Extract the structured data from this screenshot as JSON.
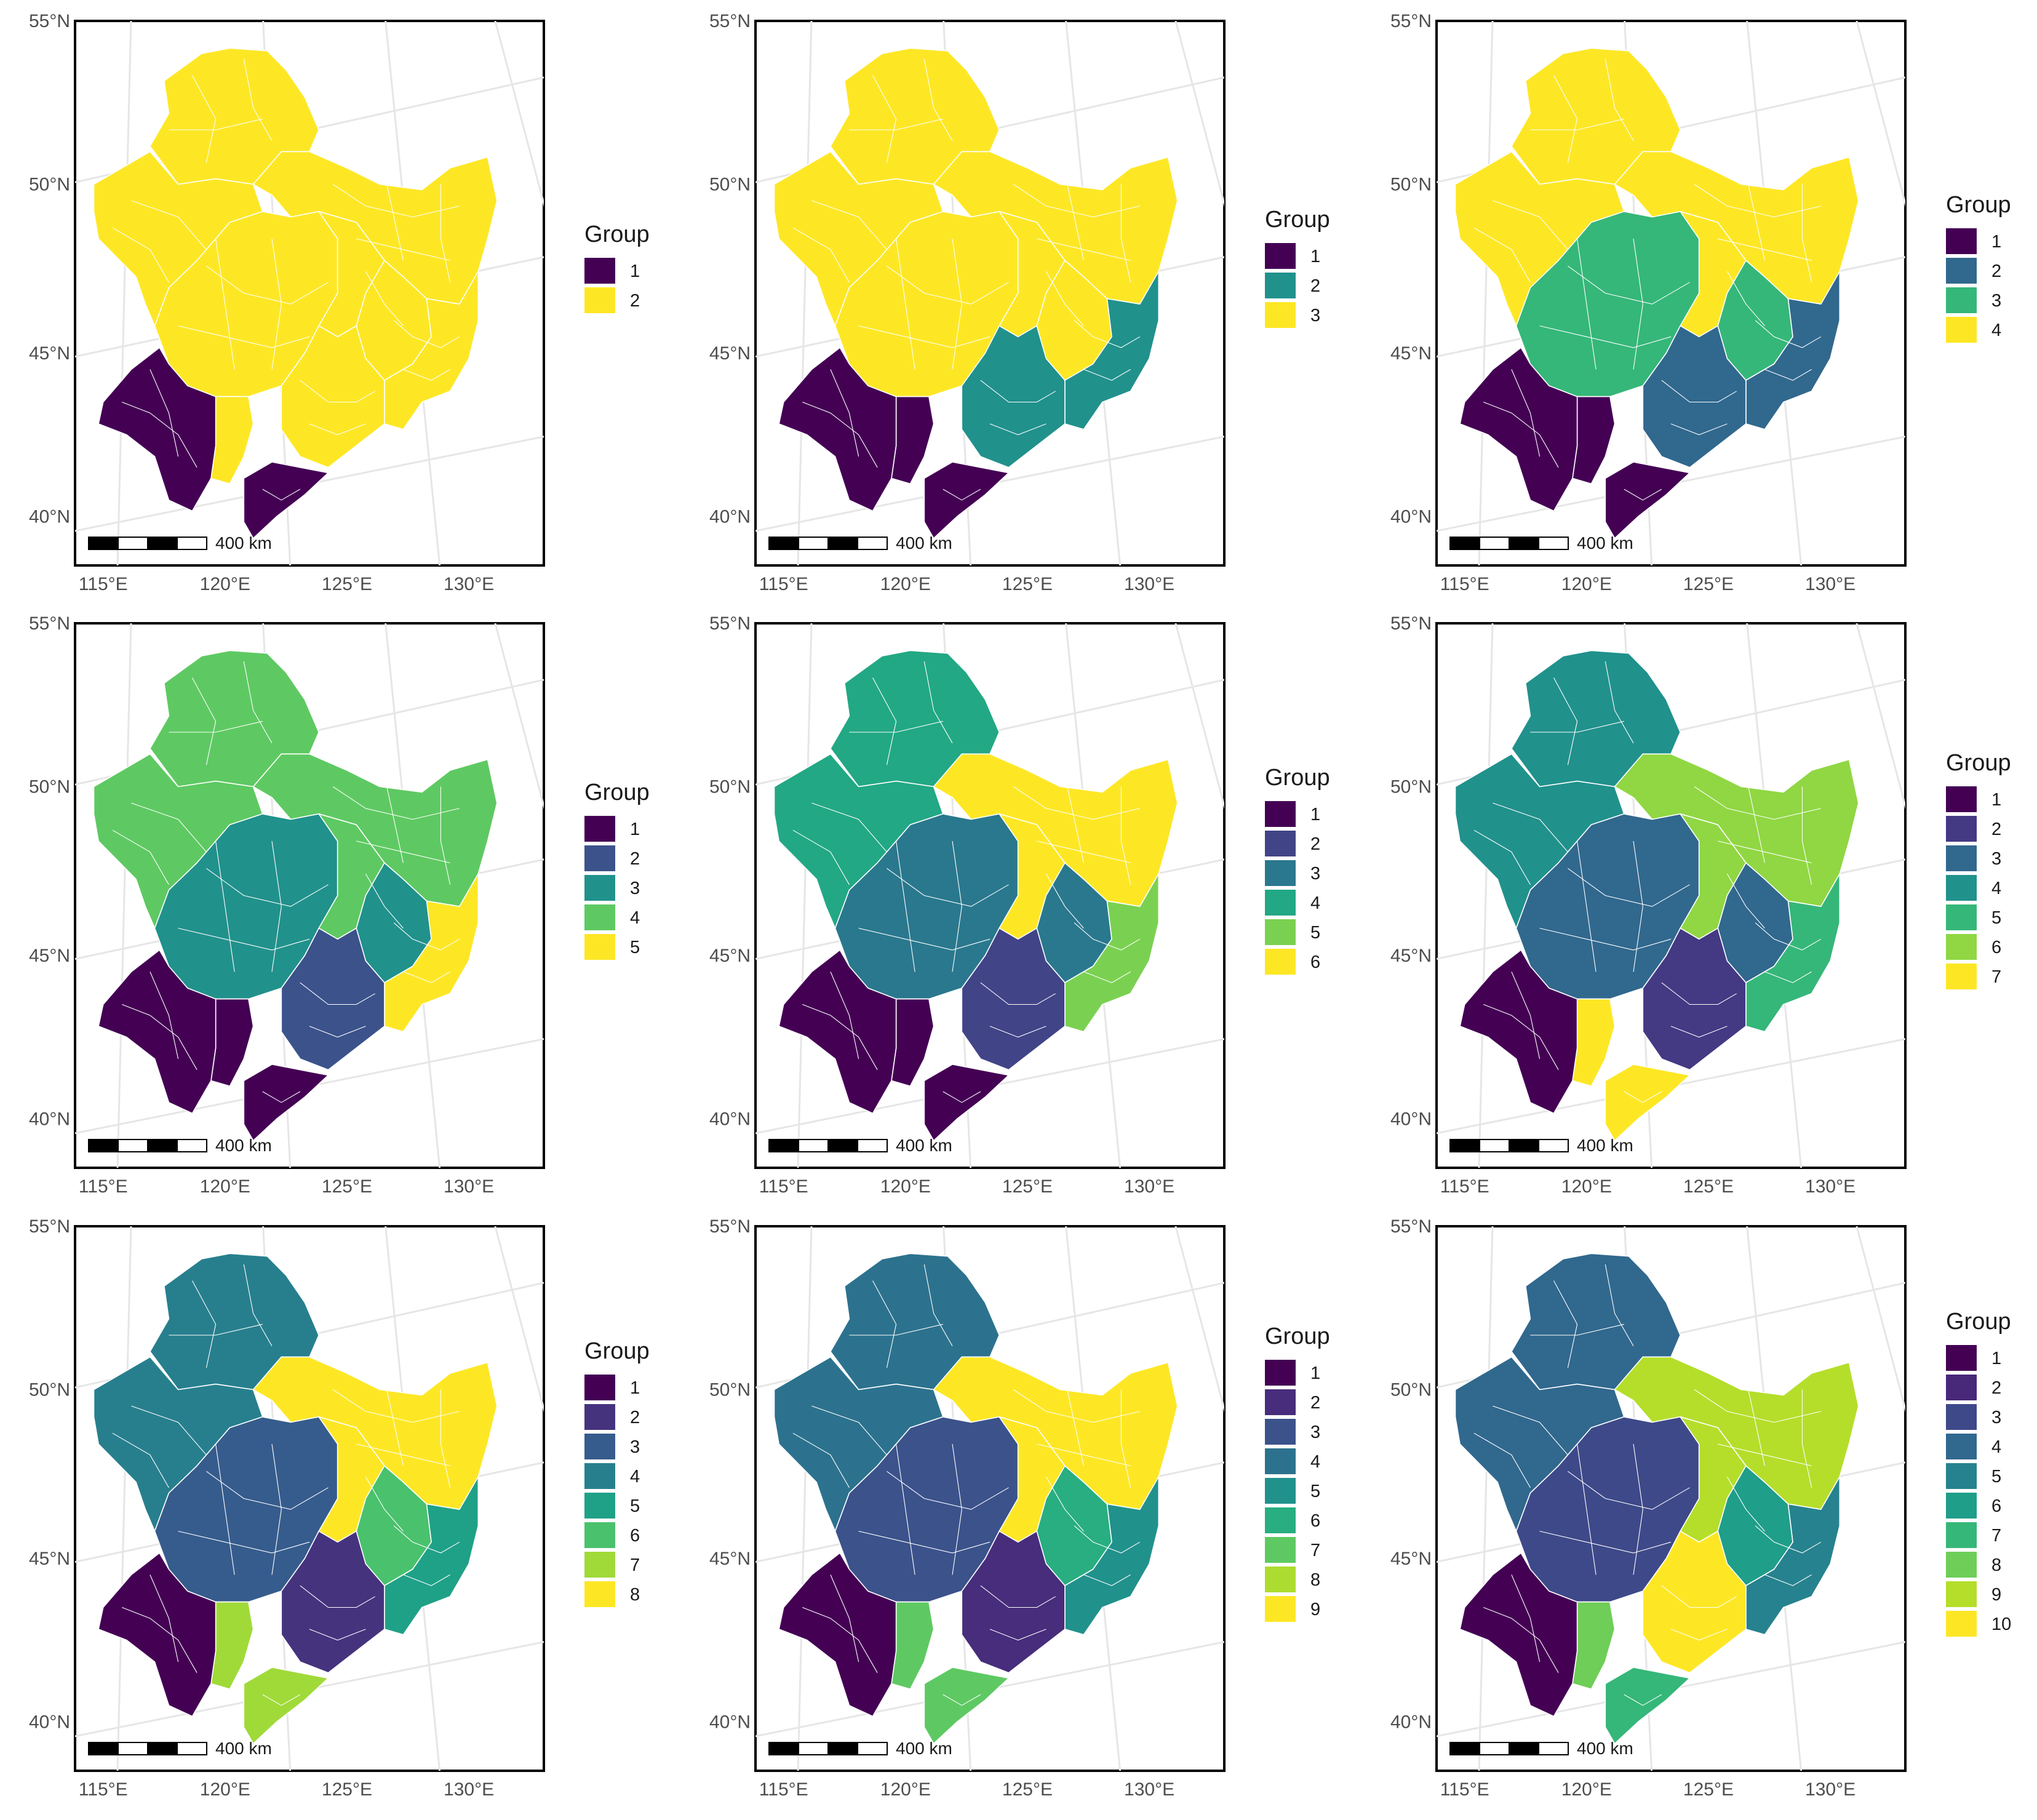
{
  "maps": {
    "lat_labels": [
      "55°N",
      "50°N",
      "45°N",
      "40°N"
    ],
    "lon_labels": [
      "115°E",
      "120°E",
      "125°E",
      "130°E"
    ],
    "scalebar_label": "400 km",
    "legend_title": "Group",
    "palettes": {
      "2": [
        "#440154",
        "#fde725"
      ],
      "3": [
        "#440154",
        "#21918c",
        "#fde725"
      ],
      "4": [
        "#440154",
        "#31688e",
        "#35b779",
        "#fde725"
      ],
      "5": [
        "#440154",
        "#3b528b",
        "#21918c",
        "#5ec962",
        "#fde725"
      ],
      "6": [
        "#440154",
        "#414487",
        "#2a788e",
        "#22a884",
        "#7ad151",
        "#fde725"
      ],
      "7": [
        "#440154",
        "#443983",
        "#31688e",
        "#21918c",
        "#35b779",
        "#90d743",
        "#fde725"
      ],
      "8": [
        "#440154",
        "#46337e",
        "#365c8d",
        "#277f8e",
        "#1fa187",
        "#4ac16d",
        "#a0da39",
        "#fde725"
      ],
      "9": [
        "#440154",
        "#472d7b",
        "#3b528b",
        "#2c728e",
        "#21918c",
        "#28ae80",
        "#5ec962",
        "#addc30",
        "#fde725"
      ],
      "10": [
        "#440154",
        "#482878",
        "#3e4989",
        "#31688e",
        "#26828e",
        "#1f9e89",
        "#35b779",
        "#6ece58",
        "#b5de2b",
        "#fde725"
      ]
    },
    "panels": [
      {
        "k": 2,
        "legend_labels": [
          "1",
          "2"
        ]
      },
      {
        "k": 3,
        "legend_labels": [
          "1",
          "2",
          "3"
        ]
      },
      {
        "k": 4,
        "legend_labels": [
          "1",
          "2",
          "3",
          "4"
        ]
      },
      {
        "k": 5,
        "legend_labels": [
          "1",
          "2",
          "3",
          "4",
          "5"
        ]
      },
      {
        "k": 6,
        "legend_labels": [
          "1",
          "2",
          "3",
          "4",
          "5",
          "6"
        ]
      },
      {
        "k": 7,
        "legend_labels": [
          "1",
          "2",
          "3",
          "4",
          "5",
          "6",
          "7"
        ]
      },
      {
        "k": 8,
        "legend_labels": [
          "1",
          "2",
          "3",
          "4",
          "5",
          "6",
          "7",
          "8"
        ]
      },
      {
        "k": 9,
        "legend_labels": [
          "1",
          "2",
          "3",
          "4",
          "5",
          "6",
          "7",
          "8",
          "9"
        ]
      },
      {
        "k": 10,
        "legend_labels": [
          "1",
          "2",
          "3",
          "4",
          "5",
          "6",
          "7",
          "8",
          "9",
          "10"
        ]
      }
    ],
    "region_groups": [
      {
        "k": 2,
        "groups": {
          "west": 1,
          "liaodong": 1,
          "north": 2,
          "northwest": 2,
          "central": 2,
          "hlj_east": 2,
          "jilin_east": 2,
          "liaoning": 2,
          "songnen": 2,
          "jilin_mid": 2,
          "west_strip": 2
        }
      },
      {
        "k": 3,
        "groups": {
          "west": 1,
          "liaodong": 1,
          "north": 3,
          "northwest": 3,
          "central": 3,
          "hlj_east": 3,
          "jilin_east": 2,
          "liaoning": 2,
          "songnen": 3,
          "jilin_mid": 3,
          "west_strip": 1
        }
      },
      {
        "k": 4,
        "groups": {
          "west": 1,
          "liaodong": 1,
          "north": 4,
          "northwest": 4,
          "central": 3,
          "hlj_east": 4,
          "jilin_east": 2,
          "liaoning": 2,
          "songnen": 4,
          "jilin_mid": 3,
          "west_strip": 1
        }
      },
      {
        "k": 5,
        "groups": {
          "west": 1,
          "liaodong": 1,
          "north": 4,
          "northwest": 4,
          "central": 3,
          "hlj_east": 4,
          "jilin_east": 5,
          "liaoning": 2,
          "songnen": 4,
          "jilin_mid": 3,
          "west_strip": 1
        }
      },
      {
        "k": 6,
        "groups": {
          "west": 1,
          "liaodong": 1,
          "north": 4,
          "northwest": 4,
          "central": 3,
          "hlj_east": 6,
          "jilin_east": 5,
          "liaoning": 2,
          "songnen": 6,
          "jilin_mid": 3,
          "west_strip": 1
        }
      },
      {
        "k": 7,
        "groups": {
          "west": 1,
          "liaodong": 7,
          "north": 4,
          "northwest": 4,
          "central": 3,
          "hlj_east": 6,
          "jilin_east": 5,
          "liaoning": 2,
          "songnen": 6,
          "jilin_mid": 3,
          "west_strip": 7
        }
      },
      {
        "k": 8,
        "groups": {
          "west": 1,
          "liaodong": 7,
          "north": 4,
          "northwest": 4,
          "central": 3,
          "hlj_east": 8,
          "jilin_east": 5,
          "liaoning": 2,
          "songnen": 8,
          "jilin_mid": 6,
          "west_strip": 7
        }
      },
      {
        "k": 9,
        "groups": {
          "west": 1,
          "liaodong": 7,
          "north": 4,
          "northwest": 4,
          "central": 3,
          "hlj_east": 9,
          "jilin_east": 5,
          "liaoning": 2,
          "songnen": 9,
          "jilin_mid": 6,
          "west_strip": 7
        }
      },
      {
        "k": 10,
        "groups": {
          "west": 1,
          "liaodong": 7,
          "north": 4,
          "northwest": 4,
          "central": 3,
          "hlj_east": 9,
          "jilin_east": 5,
          "liaoning": 10,
          "songnen": 9,
          "jilin_mid": 6,
          "west_strip": 8
        }
      }
    ]
  }
}
